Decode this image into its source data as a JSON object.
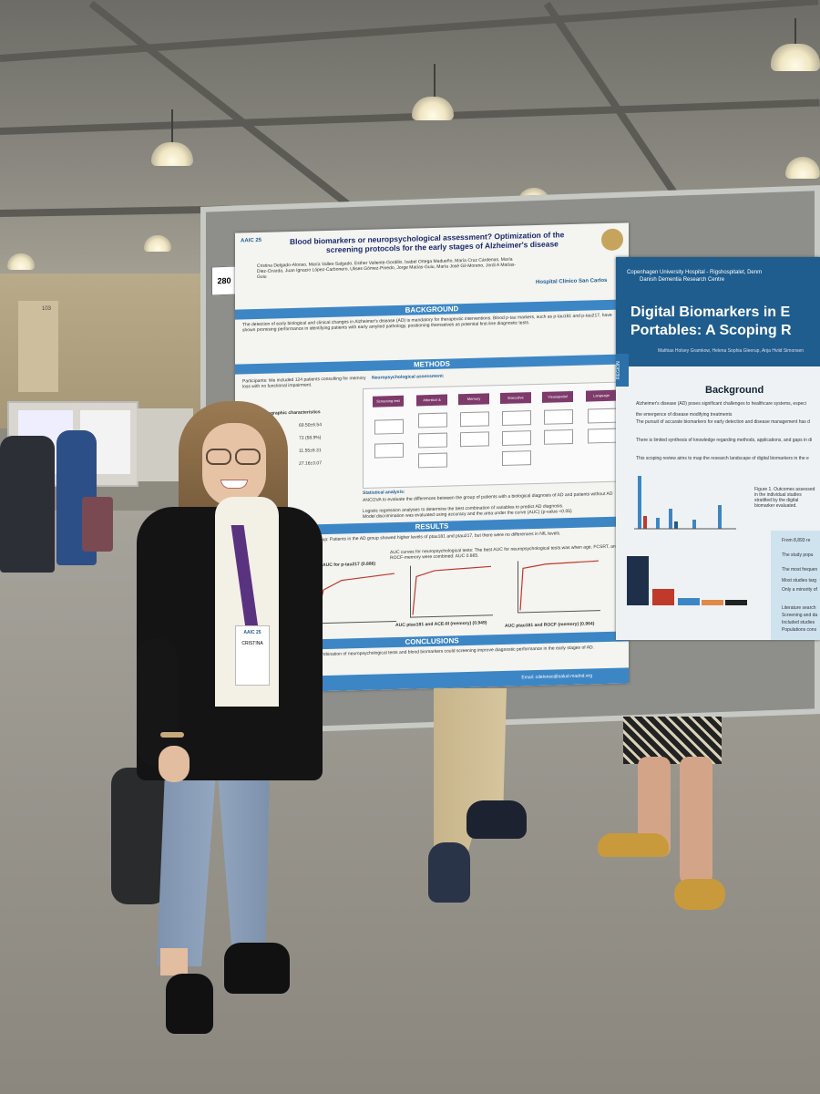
{
  "photo": {
    "description": "",
    "colors": {
      "poster_blue": "#3c86c5",
      "node_purple": "#7d3a6a",
      "right_poster_blue": "#1f5d8e",
      "board_gray": "#8e8f8a"
    }
  },
  "poster_main": {
    "number": "280",
    "conference": "AAIC 25",
    "title_line1": "Blood biomarkers or neuropsychological assessment? Optimization of the",
    "title_line2": "screening protocols for the early stages of Alzheimer's disease",
    "authors": "Cristina Delgado-Alonso, María Valles-Salgado, Esther Valiente-Gordillo, Isabel Ortega Madueño, María Cruz Cárdenas, María Diez-Cirarda, Juan Ignacio López-Carbonero, Ulises Gómez-Pinedo, Jorge Matías-Guiu, María José Gil-Moreno, Jordi A Matías-Guiu",
    "hospital": "Hospital Clínico San Carlos",
    "sections": {
      "background": "BACKGROUND",
      "methods": "METHODS",
      "results": "RESULTS",
      "conclusions": "CONCLUSIONS"
    },
    "background_text": "The detection of early biological and clinical changes in Alzheimer's disease (AD) is mandatory for therapeutic interventions. Blood p-tau markers, such as p-tau181 and p-tau217, have shown promising performance in identifying patients with early amyloid pathology, positioning themselves as potential first-line diagnostic tests.",
    "participants": "Participants: We included 124 patients consulting for memory loss with no functional impairment.",
    "neuro_label": "Neuropsychological assessment:",
    "domains": [
      "Screening test",
      "Attention & Processing Speed",
      "Memory",
      "Executive Functions",
      "Visuospatial",
      "Language"
    ],
    "demo_title": "Sociodemographic characteristics",
    "demo_values": [
      "69.50±6.54",
      "73 (58.9%)",
      "11.55±6.31",
      "27.16±3.07"
    ],
    "statistical_label": "Statistical analysis:",
    "stats_lines": [
      "ANCOVA to evaluate the differences between the group of patients with a biological diagnosis of AD and patients without AD",
      "Logistic regression analyses to determine the best combination of variables to predict AD diagnosis.",
      "Model discrimination was evaluated using accuracy and the area under the curve (AUC) (p-value <0.05)"
    ],
    "results_text": "AD group: Patients in the AD group showed higher levels of ptau181 and ptau217, but there were no differences in NfL levels.",
    "auc_neuro": "AUC curves for neuropsychological tests: The best AUC for neuropsychological tests was when age, FCSRT, and ROCF-memory were combined: AUC 0.865.",
    "plot1_title": "AUC for p-tau217 (0.886)",
    "plot2_caption": "AUC ptau181 and ACE-III (memory) (0.949)",
    "plot3_caption": "AUC ptau181 and ROCF (memory) (0.964)",
    "conclusion_text": "The combination of neuropsychological tests and blood biomarkers could screening improve diagnostic performance in the early stages of AD.",
    "email": "Email: cdelonso@salud.madrid.org"
  },
  "poster_right": {
    "institution": "Copenhagen University Hospital - Rigshospitalet, Denm",
    "institution2": "Danish Dementia Research Centre",
    "title_line1": "Digital Biomarkers in E",
    "title_line2": "Portables: A Scoping R",
    "authors": "Mathias Holsey Gramkow, Helena Sophia Gleerup, Anja Hviid Simonsen",
    "side_label": "REGION",
    "section": "Background",
    "bullets": [
      "Alzheimer's disease (AD) poses significant challenges to healthcare systems, especi",
      "the emergence of disease modifying treatments",
      "The pursuit of accurate biomarkers for early detection and disease management has d",
      "There is limited synthesis of knowledge regarding methods, applications, and gaps in di",
      "This scoping review aims to map the research landscape of digital biomarkers in the e"
    ],
    "figure1": "Figure 1. Outcomes assessed in the individual studies stratified by the digital biomarker evaluated.",
    "notes": [
      "From 8,893 re",
      "The study popu",
      "The most frequen",
      "Most studies targ",
      "Only a minority of",
      "Literature search",
      "Screening and da",
      "Included studies",
      "Populations cons"
    ]
  },
  "booth_number": "103",
  "badge_name": "CRISTINA",
  "badge_event": "AAIC 25"
}
